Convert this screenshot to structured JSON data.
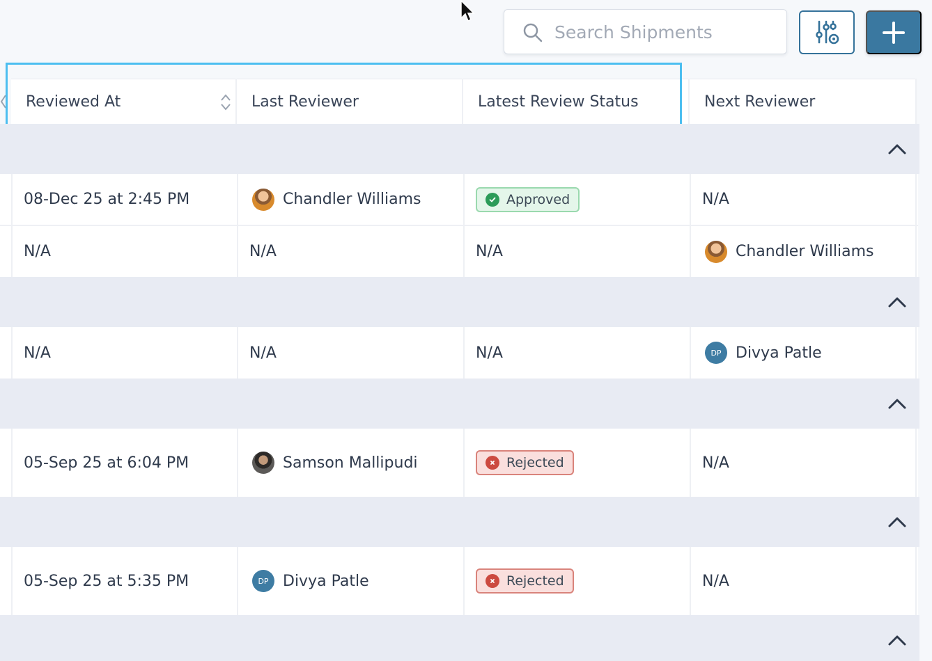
{
  "toolbar": {
    "search_placeholder": "Search Shipments",
    "search_value": "",
    "filter_icon": "sliders-gear-icon",
    "add_icon": "plus-icon"
  },
  "table": {
    "columns": [
      {
        "label": "Reviewed At",
        "sortable": true
      },
      {
        "label": "Last Reviewer",
        "sortable": false
      },
      {
        "label": "Latest Review Status",
        "sortable": false
      },
      {
        "label": "Next Reviewer",
        "sortable": false
      }
    ],
    "rows": [
      {
        "reviewed_at": "08-Dec 25 at 2:45 PM",
        "last_reviewer": "Chandler Williams",
        "last_avatar": "cw",
        "status": "Approved",
        "next_reviewer": "N/A",
        "next_avatar": ""
      },
      {
        "reviewed_at": "N/A",
        "last_reviewer": "N/A",
        "last_avatar": "",
        "status": "N/A",
        "next_reviewer": "Chandler Williams",
        "next_avatar": "cw"
      },
      {
        "reviewed_at": "N/A",
        "last_reviewer": "N/A",
        "last_avatar": "",
        "status": "N/A",
        "next_reviewer": "Divya Patle",
        "next_avatar": "DP"
      },
      {
        "reviewed_at": "05-Sep 25 at 6:04 PM",
        "last_reviewer": "Samson Mallipudi",
        "last_avatar": "sm",
        "status": "Rejected",
        "next_reviewer": "N/A",
        "next_avatar": ""
      },
      {
        "reviewed_at": "05-Sep 25 at 5:35 PM",
        "last_reviewer": "Divya Patle",
        "last_avatar": "DP",
        "status": "Rejected",
        "next_reviewer": "N/A",
        "next_avatar": ""
      }
    ]
  },
  "colors": {
    "accent": "#3a78a0",
    "highlight": "#4cbef0",
    "approved": "#2c9b59",
    "rejected": "#cc4a40",
    "group_bg": "#e8ebf3"
  }
}
